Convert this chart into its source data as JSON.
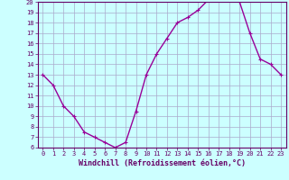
{
  "x": [
    0,
    1,
    2,
    3,
    4,
    5,
    6,
    7,
    8,
    9,
    10,
    11,
    12,
    13,
    14,
    15,
    16,
    17,
    18,
    19,
    20,
    21,
    22,
    23
  ],
  "y": [
    13,
    12,
    10,
    9,
    7.5,
    7,
    6.5,
    6,
    6.5,
    9.5,
    13,
    15,
    16.5,
    18,
    18.5,
    19.2,
    20.2,
    20.2,
    20.2,
    20,
    17,
    14.5,
    14,
    13
  ],
  "line_color": "#990099",
  "marker": "+",
  "marker_size": 3,
  "bg_color": "#ccffff",
  "grid_color": "#aaaacc",
  "xlabel": "Windchill (Refroidissement éolien,°C)",
  "xlabel_fontsize": 6,
  "ylim": [
    6,
    20
  ],
  "xlim": [
    -0.5,
    23.5
  ],
  "yticks": [
    6,
    7,
    8,
    9,
    10,
    11,
    12,
    13,
    14,
    15,
    16,
    17,
    18,
    19,
    20
  ],
  "xticks": [
    0,
    1,
    2,
    3,
    4,
    5,
    6,
    7,
    8,
    9,
    10,
    11,
    12,
    13,
    14,
    15,
    16,
    17,
    18,
    19,
    20,
    21,
    22,
    23
  ],
  "tick_fontsize": 5,
  "axis_color": "#660066",
  "spine_color": "#660066",
  "linewidth": 1.0,
  "markeredgewidth": 0.8
}
